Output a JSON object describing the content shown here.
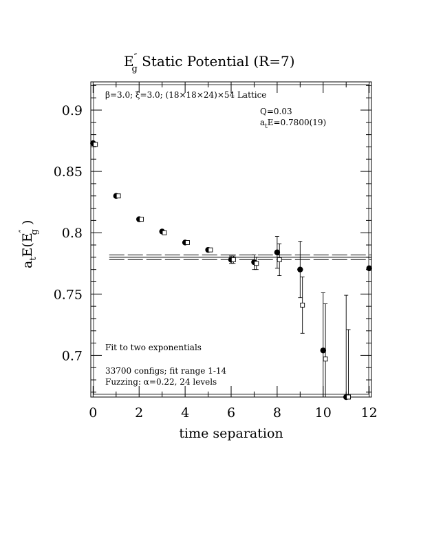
{
  "chart_data": {
    "type": "scatter",
    "title": {
      "main": "E",
      "sup": "″",
      "sub": "g",
      "rest": "  Static Potential (R=7)"
    },
    "xlabel": "time separation",
    "ylabel": {
      "pre": "a",
      "pre_sub": "t",
      "mid": "E(E",
      "sup": "″",
      "sub": "g",
      "post": " )"
    },
    "xlim": [
      -0.1,
      12.1
    ],
    "ylim": [
      0.666,
      0.923
    ],
    "x_ticks": [
      0,
      2,
      4,
      6,
      8,
      10,
      12
    ],
    "y_ticks": [
      0.7,
      0.75,
      0.8,
      0.85,
      0.9
    ],
    "y_tick_labels": [
      "0.7",
      "0.75",
      "0.8",
      "0.85",
      "0.9"
    ],
    "annotations": {
      "lattice": "β=3.0; ξ=3.0; (18×18×24)×54 Lattice",
      "q": "Q=0.03",
      "ate_pre": "a",
      "ate_sub": "t",
      "ate_post": "E=0.7800(19)",
      "fit_method": "Fit to two exponentials",
      "configs": "33700 configs; fit range 1-14",
      "fuzzing": "Fuzzing: α=0.22, 24 levels"
    },
    "fit": {
      "value": 0.78,
      "error": 0.0019,
      "x_start": 0.7
    },
    "series": [
      {
        "marker": "filled-circle",
        "points": [
          {
            "x": 0,
            "y": 0.873,
            "err": 0.001
          },
          {
            "x": 1,
            "y": 0.83,
            "err": 0.001
          },
          {
            "x": 2,
            "y": 0.811,
            "err": 0.001
          },
          {
            "x": 3,
            "y": 0.801,
            "err": 0.001
          },
          {
            "x": 4,
            "y": 0.792,
            "err": 0.001
          },
          {
            "x": 5,
            "y": 0.786,
            "err": 0.001
          },
          {
            "x": 6,
            "y": 0.778,
            "err": 0.003
          },
          {
            "x": 7,
            "y": 0.776,
            "err": 0.006
          },
          {
            "x": 8,
            "y": 0.784,
            "err": 0.013
          },
          {
            "x": 9,
            "y": 0.77,
            "err": 0.023
          },
          {
            "x": 10,
            "y": 0.704,
            "err": 0.047
          },
          {
            "x": 11,
            "y": 0.666,
            "err": 0.083
          },
          {
            "x": 12,
            "y": 0.771,
            "err": 0.0
          }
        ]
      },
      {
        "marker": "open-square",
        "points": [
          {
            "x": 0.1,
            "y": 0.872,
            "err": 0.001
          },
          {
            "x": 1.1,
            "y": 0.83,
            "err": 0.001
          },
          {
            "x": 2.1,
            "y": 0.811,
            "err": 0.001
          },
          {
            "x": 3.1,
            "y": 0.8,
            "err": 0.001
          },
          {
            "x": 4.1,
            "y": 0.792,
            "err": 0.001
          },
          {
            "x": 5.1,
            "y": 0.786,
            "err": 0.001
          },
          {
            "x": 6.1,
            "y": 0.778,
            "err": 0.003
          },
          {
            "x": 7.1,
            "y": 0.775,
            "err": 0.005
          },
          {
            "x": 8.1,
            "y": 0.778,
            "err": 0.013
          },
          {
            "x": 9.1,
            "y": 0.741,
            "err": 0.023
          },
          {
            "x": 10.1,
            "y": 0.697,
            "err": 0.045
          },
          {
            "x": 11.1,
            "y": 0.666,
            "err": 0.055
          }
        ]
      }
    ]
  }
}
